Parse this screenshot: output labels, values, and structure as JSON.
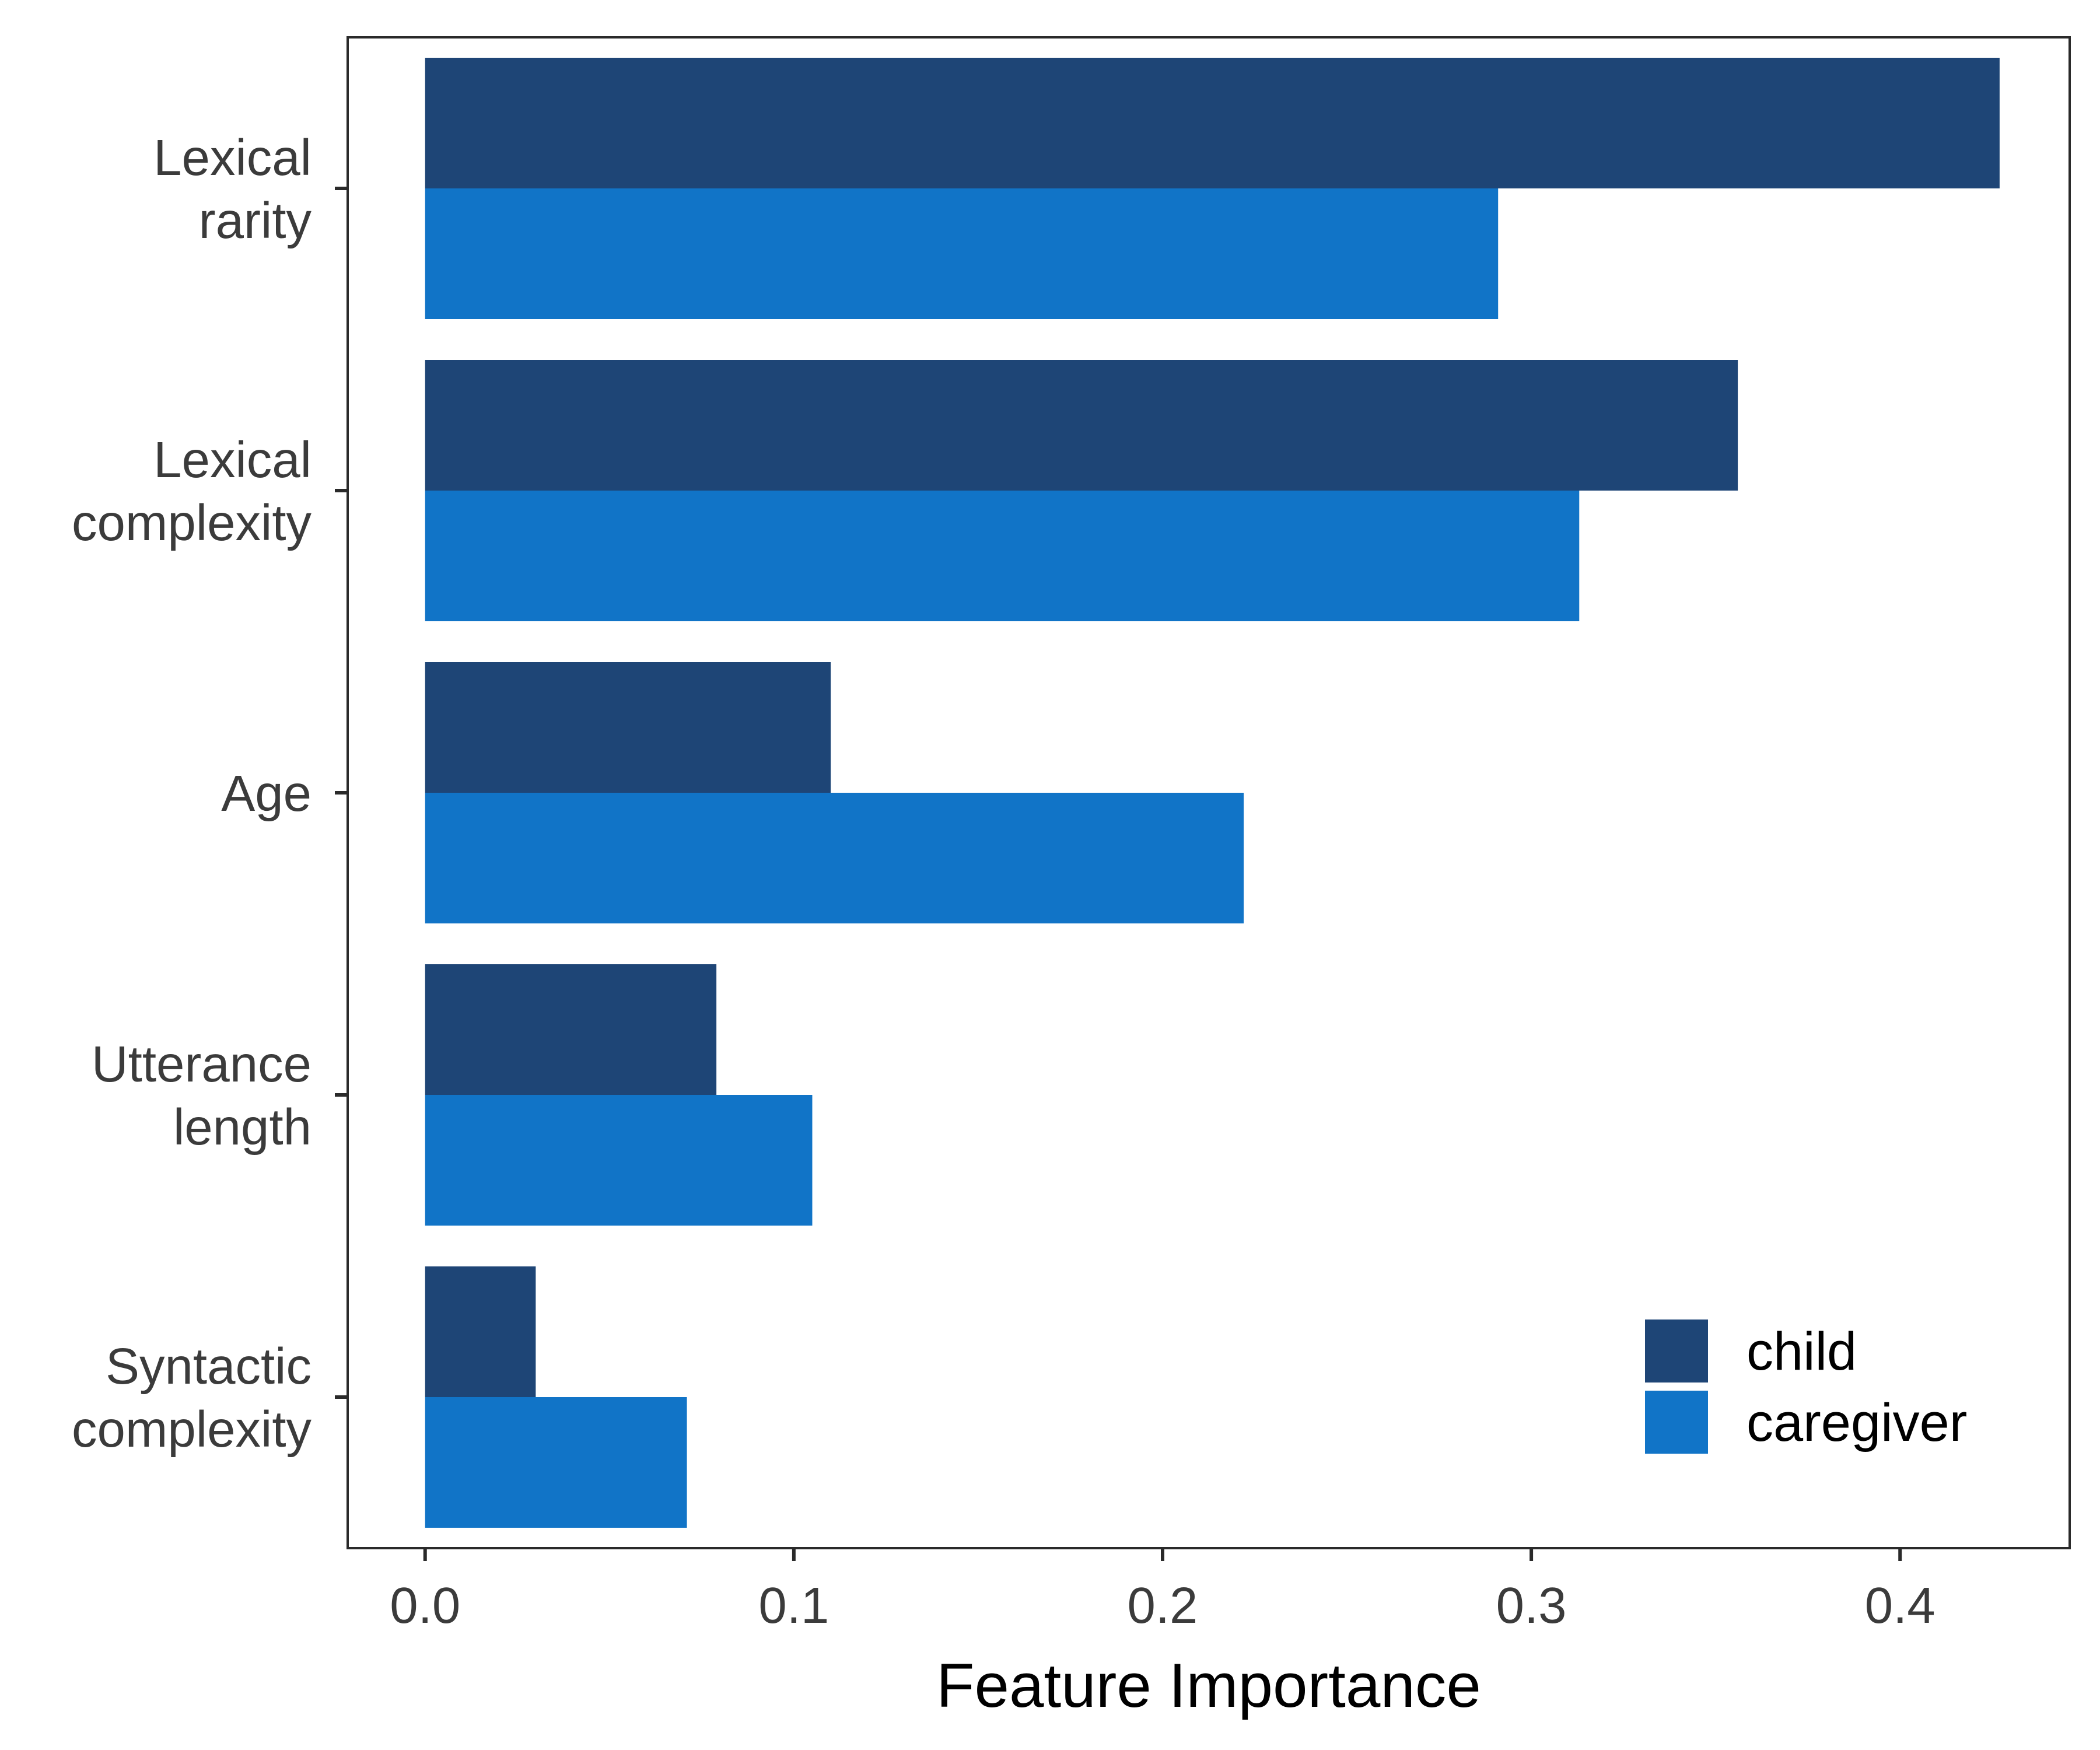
{
  "chart_data": {
    "type": "bar",
    "orientation": "horizontal",
    "title": "",
    "xlabel": "Feature Importance",
    "ylabel": "",
    "xlim": [
      -0.021,
      0.446
    ],
    "xticks": [
      0.0,
      0.1,
      0.2,
      0.3,
      0.4
    ],
    "xtick_labels": [
      "0.0",
      "0.1",
      "0.2",
      "0.3",
      "0.4"
    ],
    "categories": [
      [
        "Lexical",
        "rarity"
      ],
      [
        "Lexical",
        "complexity"
      ],
      [
        "Age"
      ],
      [
        "Utterance",
        "length"
      ],
      [
        "Syntactic",
        "complexity"
      ]
    ],
    "series": [
      {
        "name": "child",
        "color": "#1e4576",
        "values": [
          0.427,
          0.356,
          0.11,
          0.079,
          0.03
        ]
      },
      {
        "name": "caregiver",
        "color": "#1174c7",
        "values": [
          0.291,
          0.313,
          0.222,
          0.105,
          0.071
        ]
      }
    ],
    "grid": false,
    "legend_position": "bottom-right"
  }
}
